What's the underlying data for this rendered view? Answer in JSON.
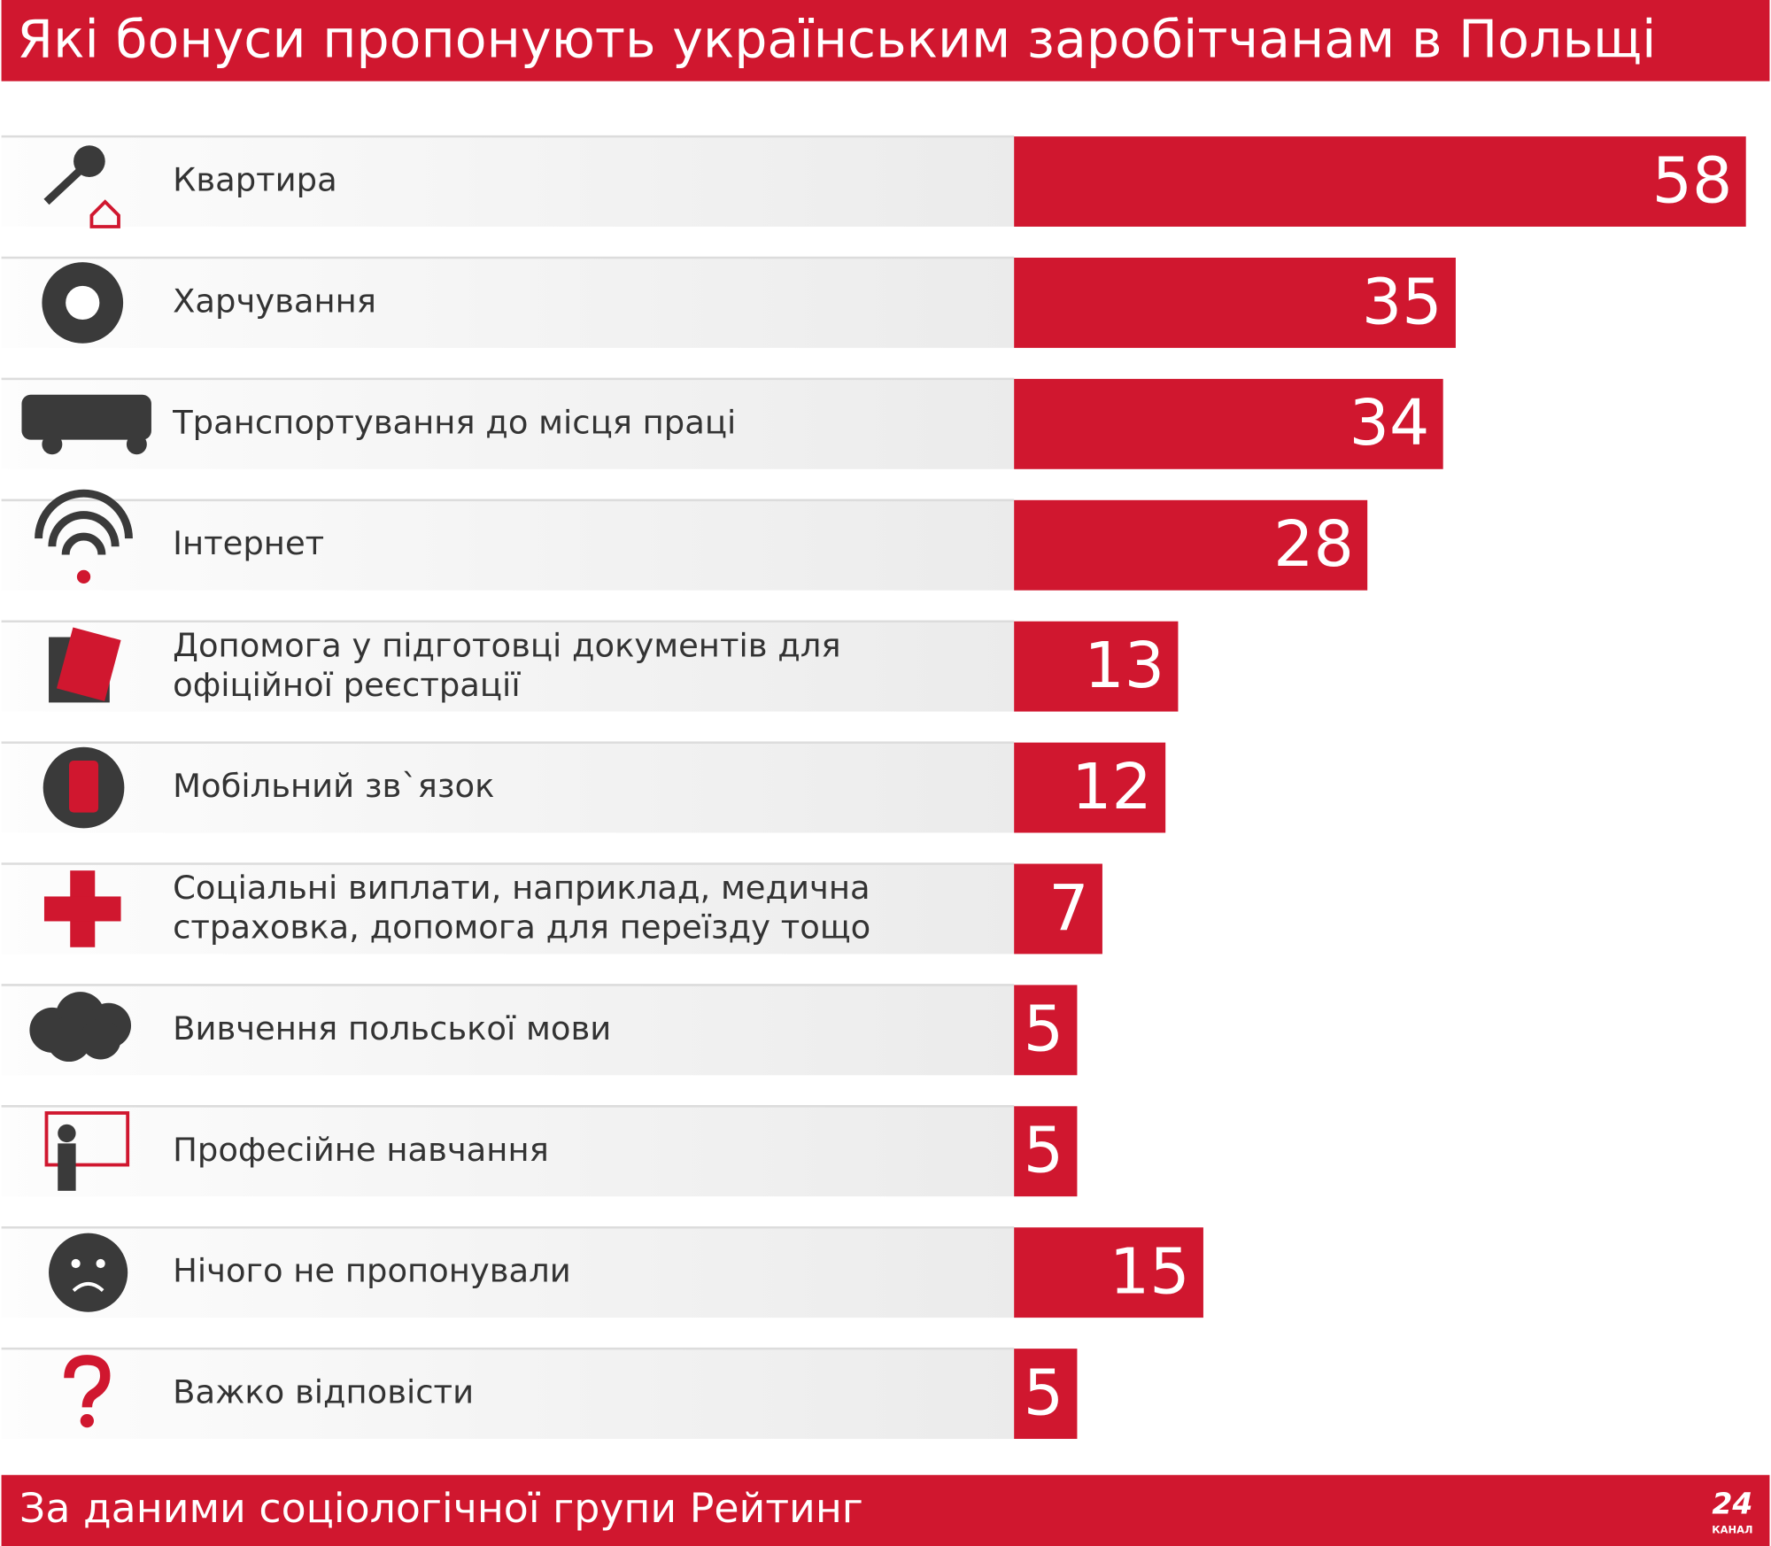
{
  "chart_data": {
    "type": "bar",
    "orientation": "horizontal",
    "title": "Які бонуси пропонують українським заробітчанам в Польщі",
    "categories": [
      "Квартира",
      "Харчування",
      "Транспортування до місця праці",
      "Інтернет",
      "Допомога у підготовці документів для офіційної реєстрації",
      "Мобільний зв`язок",
      "Соціальні виплати, наприклад, медична страховка, допомога для переїзду тощо",
      "Вивчення польської мови",
      "Професійне навчання",
      "Нічого не пропонували",
      "Важко відповісти"
    ],
    "values": [
      58,
      35,
      34,
      28,
      13,
      12,
      7,
      5,
      5,
      15,
      5
    ],
    "color": "#d0172f",
    "source": "За даними соціологічної групи Рейтинг",
    "logo": "24",
    "logo_caption": "КАНАЛ"
  }
}
